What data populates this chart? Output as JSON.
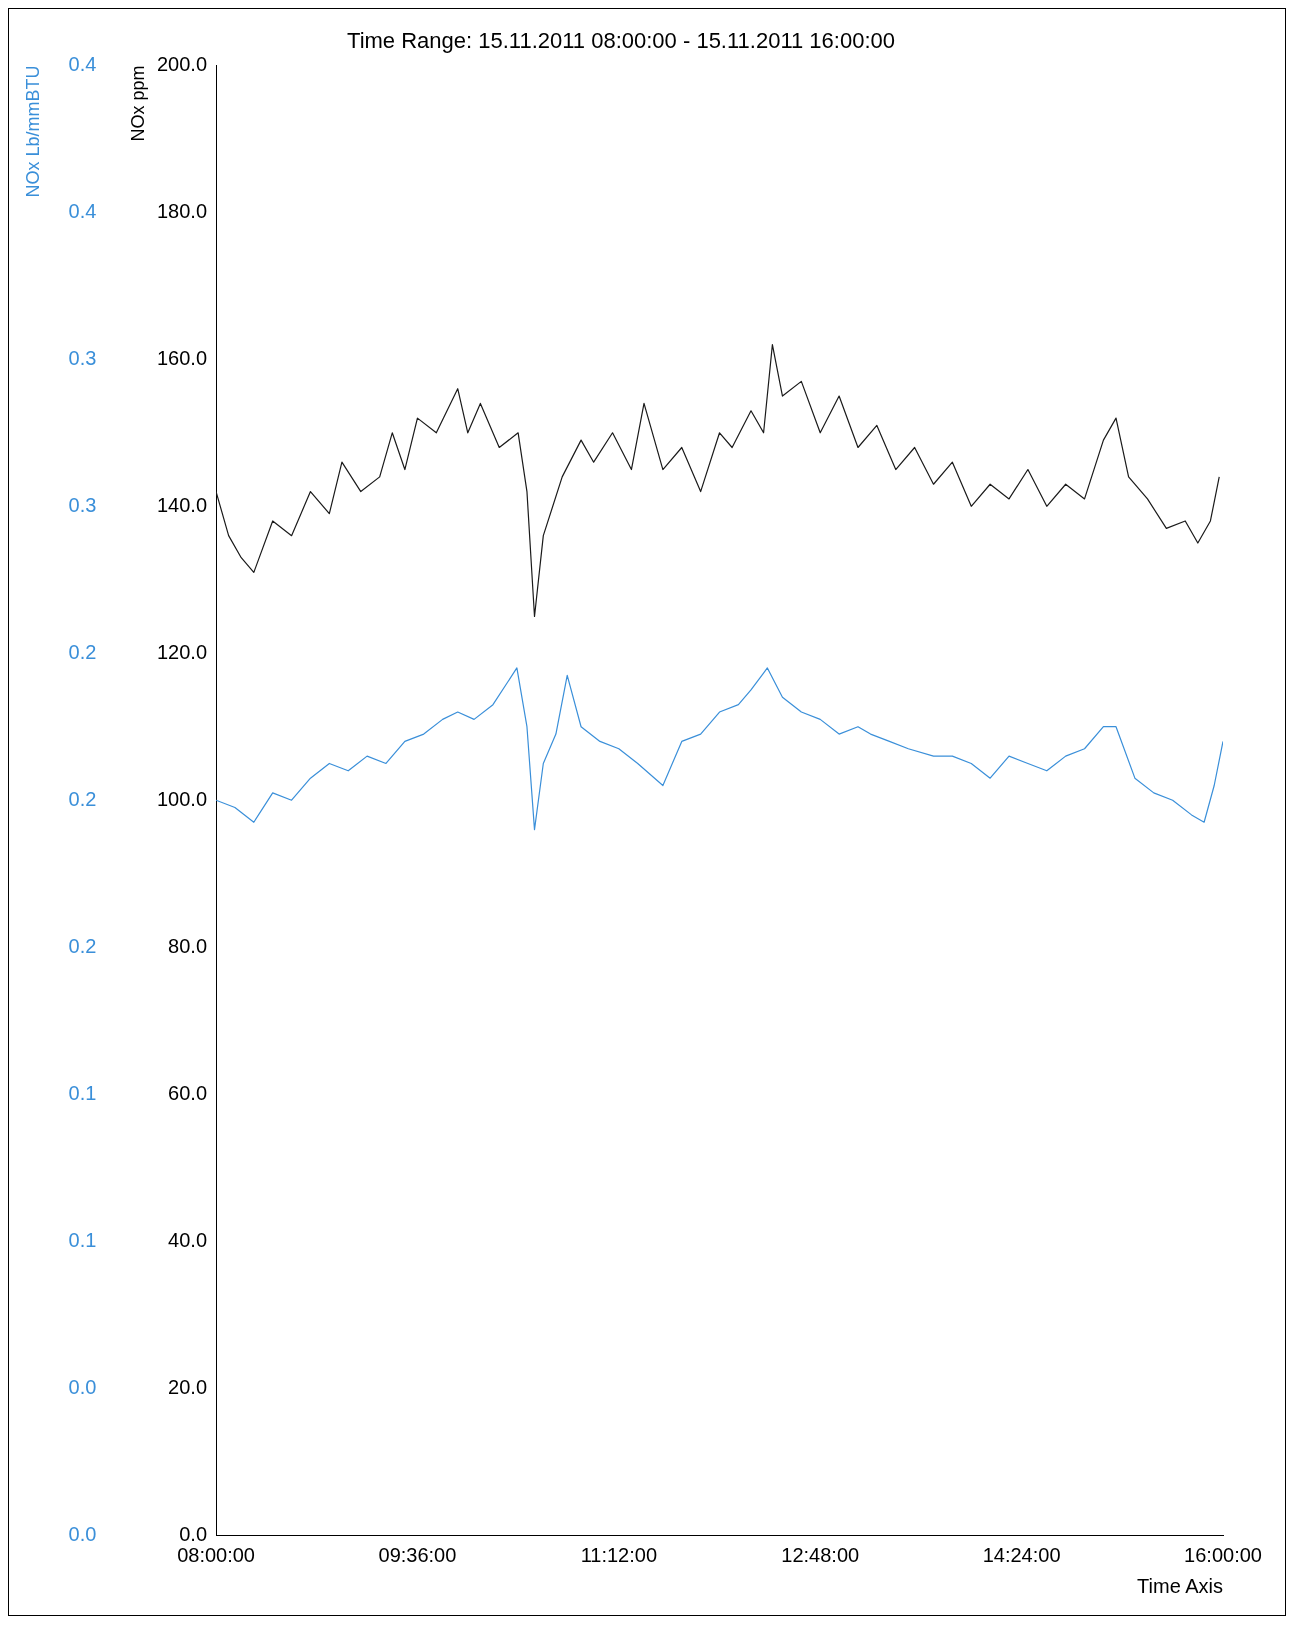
{
  "chart_data": {
    "type": "line",
    "title": "Time Range: 15.11.2011 08:00:00 - 15.11.2011 16:00:00",
    "xlabel": "Time Axis",
    "ylabel": "NOx ppm",
    "y2label": "NOx Lb/mmBTU",
    "xlim": [
      8,
      16
    ],
    "xticks": [
      {
        "value": 8,
        "label": "08:00:00"
      },
      {
        "value": 9.6,
        "label": "09:36:00"
      },
      {
        "value": 11.2,
        "label": "11:12:00"
      },
      {
        "value": 12.8,
        "label": "12:48:00"
      },
      {
        "value": 14.4,
        "label": "14:24:00"
      },
      {
        "value": 16,
        "label": "16:00:00"
      }
    ],
    "ylim": [
      0,
      200
    ],
    "yticks": [
      {
        "value": 0,
        "label": "0.0"
      },
      {
        "value": 20,
        "label": "20.0"
      },
      {
        "value": 40,
        "label": "40.0"
      },
      {
        "value": 60,
        "label": "60.0"
      },
      {
        "value": 80,
        "label": "80.0"
      },
      {
        "value": 100,
        "label": "100.0"
      },
      {
        "value": 120,
        "label": "120.0"
      },
      {
        "value": 140,
        "label": "140.0"
      },
      {
        "value": 160,
        "label": "160.0"
      },
      {
        "value": 180,
        "label": "180.0"
      },
      {
        "value": 200,
        "label": "200.0"
      }
    ],
    "y2lim": [
      0,
      0.4
    ],
    "y2ticks": [
      {
        "value": 0,
        "label": "0.0"
      },
      {
        "value": 0.04,
        "label": "0.0"
      },
      {
        "value": 0.08,
        "label": "0.1"
      },
      {
        "value": 0.12,
        "label": "0.1"
      },
      {
        "value": 0.16,
        "label": "0.2"
      },
      {
        "value": 0.2,
        "label": "0.2"
      },
      {
        "value": 0.24,
        "label": "0.2"
      },
      {
        "value": 0.28,
        "label": "0.3"
      },
      {
        "value": 0.32,
        "label": "0.3"
      },
      {
        "value": 0.36,
        "label": "0.4"
      },
      {
        "value": 0.4,
        "label": "0.4"
      }
    ],
    "grid": false,
    "legend": false,
    "marker": "none",
    "line_style": "solid",
    "series": [
      {
        "color": "#1a1a1a",
        "x": [
          8.0,
          8.1,
          8.2,
          8.3,
          8.45,
          8.6,
          8.75,
          8.9,
          9.0,
          9.15,
          9.3,
          9.4,
          9.5,
          9.6,
          9.75,
          9.92,
          10.0,
          10.1,
          10.25,
          10.4,
          10.47,
          10.53,
          10.6,
          10.75,
          10.9,
          11.0,
          11.15,
          11.3,
          11.4,
          11.55,
          11.7,
          11.85,
          12.0,
          12.1,
          12.25,
          12.35,
          12.42,
          12.5,
          12.65,
          12.8,
          12.95,
          13.1,
          13.25,
          13.4,
          13.55,
          13.7,
          13.85,
          14.0,
          14.15,
          14.3,
          14.45,
          14.6,
          14.75,
          14.9,
          15.05,
          15.15,
          15.25,
          15.4,
          15.55,
          15.7,
          15.8,
          15.9,
          15.97
        ],
        "values": [
          142,
          136,
          133,
          131,
          138,
          136,
          142,
          139,
          146,
          142,
          144,
          150,
          145,
          152,
          150,
          156,
          150,
          154,
          148,
          150,
          142,
          125,
          136,
          144,
          149,
          146,
          150,
          145,
          154,
          145,
          148,
          142,
          150,
          148,
          153,
          150,
          162,
          155,
          157,
          150,
          155,
          148,
          151,
          145,
          148,
          143,
          146,
          140,
          143,
          141,
          145,
          140,
          143,
          141,
          149,
          152,
          144,
          141,
          137,
          138,
          135,
          138,
          144
        ]
      },
      {
        "color": "#3a8fd9",
        "axis": "y2",
        "x": [
          8.0,
          8.15,
          8.3,
          8.45,
          8.6,
          8.75,
          8.9,
          9.05,
          9.2,
          9.35,
          9.5,
          9.65,
          9.8,
          9.92,
          10.05,
          10.2,
          10.39,
          10.47,
          10.53,
          10.6,
          10.7,
          10.79,
          10.9,
          11.05,
          11.2,
          11.35,
          11.55,
          11.7,
          11.85,
          12.0,
          12.15,
          12.25,
          12.38,
          12.5,
          12.65,
          12.8,
          12.95,
          13.1,
          13.2,
          13.35,
          13.5,
          13.7,
          13.85,
          14.0,
          14.15,
          14.3,
          14.45,
          14.6,
          14.75,
          14.9,
          15.05,
          15.15,
          15.3,
          15.45,
          15.6,
          15.75,
          15.85,
          15.93,
          16.0
        ],
        "values": [
          0.2,
          0.198,
          0.194,
          0.202,
          0.2,
          0.206,
          0.21,
          0.208,
          0.212,
          0.21,
          0.216,
          0.218,
          0.222,
          0.224,
          0.222,
          0.226,
          0.236,
          0.22,
          0.192,
          0.21,
          0.218,
          0.234,
          0.22,
          0.216,
          0.214,
          0.21,
          0.204,
          0.216,
          0.218,
          0.224,
          0.226,
          0.23,
          0.236,
          0.228,
          0.224,
          0.222,
          0.218,
          0.22,
          0.218,
          0.216,
          0.214,
          0.212,
          0.212,
          0.21,
          0.206,
          0.212,
          0.21,
          0.208,
          0.212,
          0.214,
          0.22,
          0.22,
          0.206,
          0.202,
          0.2,
          0.196,
          0.194,
          0.204,
          0.216
        ]
      }
    ]
  }
}
